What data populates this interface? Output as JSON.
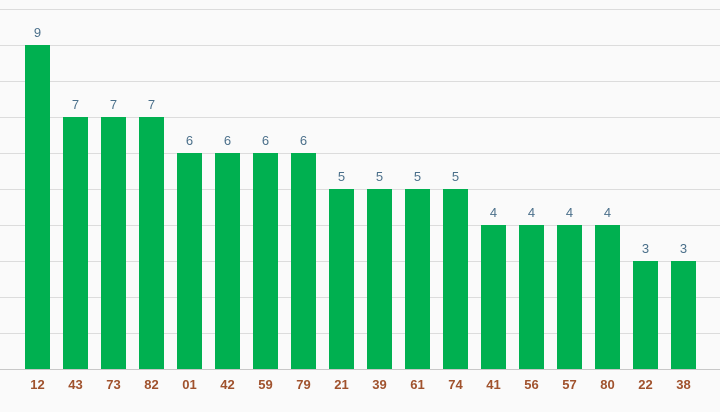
{
  "chart_data": {
    "type": "bar",
    "categories": [
      "12",
      "43",
      "73",
      "82",
      "01",
      "42",
      "59",
      "79",
      "21",
      "39",
      "61",
      "74",
      "41",
      "56",
      "57",
      "80",
      "22",
      "38"
    ],
    "values": [
      9,
      7,
      7,
      7,
      6,
      6,
      6,
      6,
      5,
      5,
      5,
      5,
      4,
      4,
      4,
      4,
      3,
      3
    ],
    "title": "",
    "xlabel": "",
    "ylabel": "",
    "ylim": [
      0,
      10
    ],
    "grid": true,
    "show_value_labels": true,
    "colors": {
      "bar": "#00b050",
      "value_label": "#4a6f8a",
      "tick_label": "#a0522d",
      "grid": "#dcdcdc",
      "axis": "#c8c8c8",
      "background": "#fafafa"
    }
  }
}
